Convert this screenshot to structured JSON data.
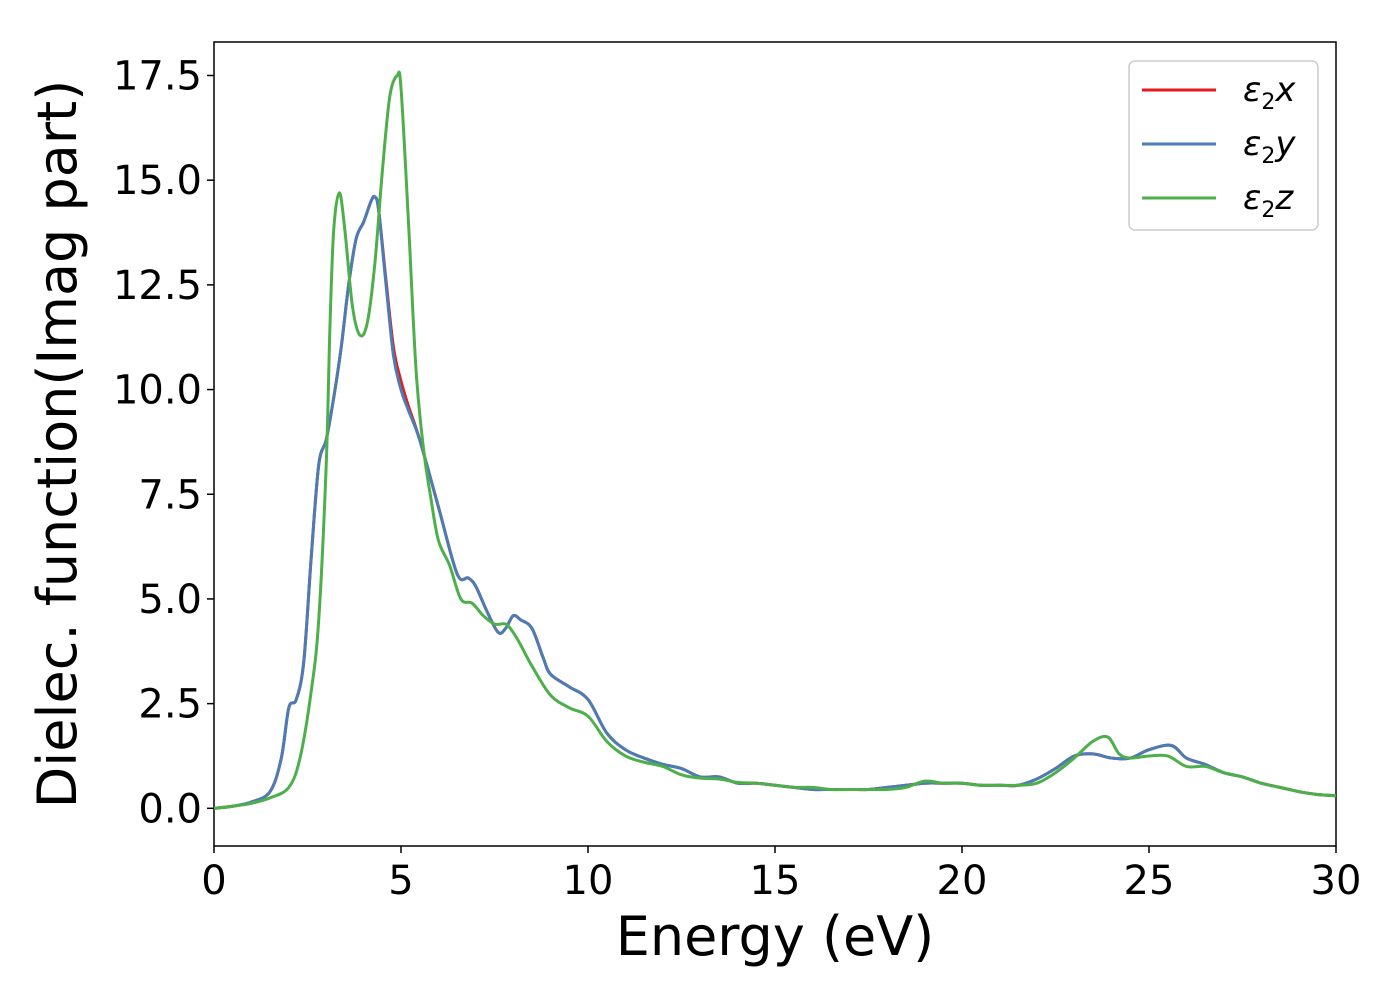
{
  "chart_data": {
    "type": "line",
    "title": "",
    "xlabel": "Energy (eV)",
    "ylabel": "Dielec. function(Imag part)",
    "xlim": [
      0,
      30
    ],
    "ylim": [
      -0.9,
      18.3
    ],
    "xticks": [
      0,
      5,
      10,
      15,
      20,
      25,
      30
    ],
    "xtick_labels": [
      "0",
      "5",
      "10",
      "15",
      "20",
      "25",
      "30"
    ],
    "yticks": [
      0,
      2.5,
      5,
      7.5,
      10,
      12.5,
      15,
      17.5
    ],
    "ytick_labels": [
      "0.0",
      "2.5",
      "5.0",
      "7.5",
      "10.0",
      "12.5",
      "15.0",
      "17.5"
    ],
    "grid": false,
    "legend_position": "top-right",
    "series": [
      {
        "name": "ε2x",
        "color": "#e41a1c",
        "points": [
          [
            0,
            0
          ],
          [
            0.5,
            0.05
          ],
          [
            1,
            0.15
          ],
          [
            1.5,
            0.4
          ],
          [
            1.8,
            1.2
          ],
          [
            2.0,
            2.4
          ],
          [
            2.2,
            2.6
          ],
          [
            2.4,
            3.5
          ],
          [
            2.6,
            6.0
          ],
          [
            2.8,
            8.2
          ],
          [
            3.0,
            8.8
          ],
          [
            3.2,
            9.8
          ],
          [
            3.4,
            11.0
          ],
          [
            3.6,
            12.5
          ],
          [
            3.8,
            13.6
          ],
          [
            4.0,
            14.0
          ],
          [
            4.2,
            14.5
          ],
          [
            4.3,
            14.6
          ],
          [
            4.4,
            14.3
          ],
          [
            4.6,
            12.6
          ],
          [
            4.8,
            11.0
          ],
          [
            5.0,
            10.2
          ],
          [
            5.2,
            9.6
          ],
          [
            5.5,
            8.8
          ],
          [
            6.0,
            7.2
          ],
          [
            6.5,
            5.6
          ],
          [
            6.8,
            5.5
          ],
          [
            7.0,
            5.3
          ],
          [
            7.3,
            4.7
          ],
          [
            7.6,
            4.2
          ],
          [
            7.8,
            4.3
          ],
          [
            8.0,
            4.6
          ],
          [
            8.2,
            4.5
          ],
          [
            8.5,
            4.3
          ],
          [
            8.8,
            3.6
          ],
          [
            9.0,
            3.2
          ],
          [
            9.5,
            2.9
          ],
          [
            10.0,
            2.6
          ],
          [
            10.5,
            1.8
          ],
          [
            11.0,
            1.4
          ],
          [
            11.5,
            1.2
          ],
          [
            12.0,
            1.05
          ],
          [
            12.5,
            0.95
          ],
          [
            13.0,
            0.75
          ],
          [
            13.5,
            0.75
          ],
          [
            14.0,
            0.6
          ],
          [
            14.5,
            0.6
          ],
          [
            15.0,
            0.55
          ],
          [
            15.5,
            0.5
          ],
          [
            16.0,
            0.45
          ],
          [
            16.5,
            0.45
          ],
          [
            17.0,
            0.45
          ],
          [
            17.5,
            0.45
          ],
          [
            18.0,
            0.5
          ],
          [
            18.5,
            0.55
          ],
          [
            19.0,
            0.6
          ],
          [
            19.5,
            0.6
          ],
          [
            20.0,
            0.6
          ],
          [
            20.5,
            0.55
          ],
          [
            21.0,
            0.55
          ],
          [
            21.5,
            0.55
          ],
          [
            22.0,
            0.7
          ],
          [
            22.5,
            0.95
          ],
          [
            23.0,
            1.25
          ],
          [
            23.5,
            1.3
          ],
          [
            24.0,
            1.2
          ],
          [
            24.5,
            1.2
          ],
          [
            25.0,
            1.4
          ],
          [
            25.6,
            1.5
          ],
          [
            26.0,
            1.2
          ],
          [
            26.5,
            1.05
          ],
          [
            27.0,
            0.85
          ],
          [
            27.5,
            0.75
          ],
          [
            28.0,
            0.6
          ],
          [
            28.5,
            0.5
          ],
          [
            29.0,
            0.4
          ],
          [
            29.5,
            0.33
          ],
          [
            30.0,
            0.3
          ]
        ]
      },
      {
        "name": "ε2y",
        "color": "#4a7db5",
        "points": [
          [
            0,
            0
          ],
          [
            0.5,
            0.05
          ],
          [
            1,
            0.15
          ],
          [
            1.5,
            0.4
          ],
          [
            1.8,
            1.2
          ],
          [
            2.0,
            2.4
          ],
          [
            2.2,
            2.6
          ],
          [
            2.4,
            3.5
          ],
          [
            2.6,
            6.0
          ],
          [
            2.8,
            8.2
          ],
          [
            3.0,
            8.8
          ],
          [
            3.2,
            9.8
          ],
          [
            3.4,
            11.0
          ],
          [
            3.6,
            12.5
          ],
          [
            3.8,
            13.6
          ],
          [
            4.0,
            14.0
          ],
          [
            4.2,
            14.5
          ],
          [
            4.3,
            14.6
          ],
          [
            4.4,
            14.3
          ],
          [
            4.6,
            12.5
          ],
          [
            4.8,
            10.8
          ],
          [
            5.0,
            10.0
          ],
          [
            5.2,
            9.5
          ],
          [
            5.5,
            8.8
          ],
          [
            6.0,
            7.2
          ],
          [
            6.5,
            5.6
          ],
          [
            6.8,
            5.5
          ],
          [
            7.0,
            5.3
          ],
          [
            7.3,
            4.7
          ],
          [
            7.6,
            4.2
          ],
          [
            7.8,
            4.3
          ],
          [
            8.0,
            4.6
          ],
          [
            8.2,
            4.5
          ],
          [
            8.5,
            4.3
          ],
          [
            8.8,
            3.6
          ],
          [
            9.0,
            3.2
          ],
          [
            9.5,
            2.9
          ],
          [
            10.0,
            2.6
          ],
          [
            10.5,
            1.8
          ],
          [
            11.0,
            1.4
          ],
          [
            11.5,
            1.2
          ],
          [
            12.0,
            1.05
          ],
          [
            12.5,
            0.95
          ],
          [
            13.0,
            0.75
          ],
          [
            13.5,
            0.75
          ],
          [
            14.0,
            0.6
          ],
          [
            14.5,
            0.6
          ],
          [
            15.0,
            0.55
          ],
          [
            15.5,
            0.5
          ],
          [
            16.0,
            0.45
          ],
          [
            16.5,
            0.45
          ],
          [
            17.0,
            0.45
          ],
          [
            17.5,
            0.45
          ],
          [
            18.0,
            0.5
          ],
          [
            18.5,
            0.55
          ],
          [
            19.0,
            0.6
          ],
          [
            19.5,
            0.6
          ],
          [
            20.0,
            0.6
          ],
          [
            20.5,
            0.55
          ],
          [
            21.0,
            0.55
          ],
          [
            21.5,
            0.55
          ],
          [
            22.0,
            0.7
          ],
          [
            22.5,
            0.95
          ],
          [
            23.0,
            1.25
          ],
          [
            23.5,
            1.3
          ],
          [
            24.0,
            1.2
          ],
          [
            24.5,
            1.2
          ],
          [
            25.0,
            1.4
          ],
          [
            25.6,
            1.5
          ],
          [
            26.0,
            1.2
          ],
          [
            26.5,
            1.05
          ],
          [
            27.0,
            0.85
          ],
          [
            27.5,
            0.75
          ],
          [
            28.0,
            0.6
          ],
          [
            28.5,
            0.5
          ],
          [
            29.0,
            0.4
          ],
          [
            29.5,
            0.33
          ],
          [
            30.0,
            0.3
          ]
        ]
      },
      {
        "name": "ε2z",
        "color": "#4daf4a",
        "points": [
          [
            0,
            0
          ],
          [
            0.5,
            0.05
          ],
          [
            1,
            0.12
          ],
          [
            1.5,
            0.25
          ],
          [
            2.0,
            0.5
          ],
          [
            2.3,
            1.2
          ],
          [
            2.6,
            2.8
          ],
          [
            2.8,
            4.5
          ],
          [
            3.0,
            8.2
          ],
          [
            3.1,
            11.5
          ],
          [
            3.2,
            13.8
          ],
          [
            3.35,
            14.7
          ],
          [
            3.5,
            13.8
          ],
          [
            3.7,
            12.0
          ],
          [
            3.9,
            11.3
          ],
          [
            4.1,
            11.6
          ],
          [
            4.3,
            13.0
          ],
          [
            4.5,
            15.2
          ],
          [
            4.7,
            17.0
          ],
          [
            4.9,
            17.5
          ],
          [
            5.0,
            17.2
          ],
          [
            5.2,
            14.0
          ],
          [
            5.4,
            10.5
          ],
          [
            5.6,
            8.6
          ],
          [
            5.8,
            7.4
          ],
          [
            6.0,
            6.4
          ],
          [
            6.3,
            5.8
          ],
          [
            6.6,
            5.0
          ],
          [
            6.9,
            4.9
          ],
          [
            7.2,
            4.6
          ],
          [
            7.5,
            4.4
          ],
          [
            7.8,
            4.4
          ],
          [
            8.0,
            4.2
          ],
          [
            8.2,
            3.9
          ],
          [
            8.5,
            3.4
          ],
          [
            9.0,
            2.7
          ],
          [
            9.5,
            2.4
          ],
          [
            10.0,
            2.2
          ],
          [
            10.5,
            1.6
          ],
          [
            11.0,
            1.25
          ],
          [
            11.5,
            1.1
          ],
          [
            12.0,
            1.0
          ],
          [
            12.5,
            0.8
          ],
          [
            13.0,
            0.72
          ],
          [
            13.5,
            0.7
          ],
          [
            14.0,
            0.62
          ],
          [
            14.5,
            0.6
          ],
          [
            15.0,
            0.55
          ],
          [
            15.5,
            0.5
          ],
          [
            16.0,
            0.5
          ],
          [
            16.5,
            0.45
          ],
          [
            17.0,
            0.45
          ],
          [
            17.5,
            0.45
          ],
          [
            18.0,
            0.45
          ],
          [
            18.5,
            0.5
          ],
          [
            19.0,
            0.65
          ],
          [
            19.5,
            0.6
          ],
          [
            20.0,
            0.6
          ],
          [
            20.5,
            0.55
          ],
          [
            21.0,
            0.55
          ],
          [
            21.5,
            0.55
          ],
          [
            22.0,
            0.6
          ],
          [
            22.5,
            0.85
          ],
          [
            23.0,
            1.2
          ],
          [
            23.5,
            1.6
          ],
          [
            23.9,
            1.7
          ],
          [
            24.2,
            1.3
          ],
          [
            24.5,
            1.2
          ],
          [
            25.0,
            1.25
          ],
          [
            25.5,
            1.25
          ],
          [
            26.0,
            1.0
          ],
          [
            26.5,
            1.0
          ],
          [
            27.0,
            0.85
          ],
          [
            27.5,
            0.75
          ],
          [
            28.0,
            0.6
          ],
          [
            28.5,
            0.5
          ],
          [
            29.0,
            0.4
          ],
          [
            29.5,
            0.33
          ],
          [
            30.0,
            0.3
          ]
        ]
      }
    ]
  }
}
